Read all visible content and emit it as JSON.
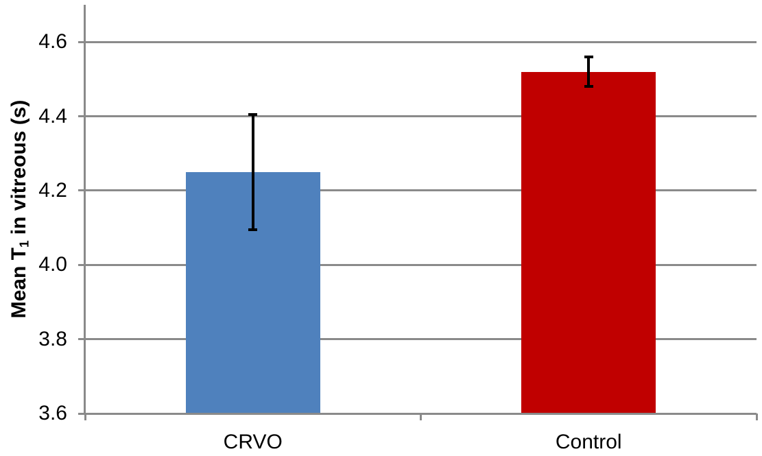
{
  "chart_data": {
    "type": "bar",
    "title": "",
    "xlabel": "",
    "ylabel": {
      "prefix": "Mean T",
      "sub": "1",
      "suffix": " in vitreous (s)",
      "full": "Mean T1 in vitreous (s)"
    },
    "categories": [
      "CRVO",
      "Control"
    ],
    "values": [
      4.25,
      4.52
    ],
    "errors_plus": [
      0.155,
      0.04
    ],
    "errors_minus": [
      0.155,
      0.04
    ],
    "error_ranges": [
      [
        4.1,
        4.41
      ],
      [
        4.48,
        4.56
      ]
    ],
    "bar_colors": [
      "#4F81BD",
      "#C00000"
    ],
    "ylim": [
      3.6,
      4.7
    ],
    "yticks": [
      3.6,
      3.8,
      4.0,
      4.2,
      4.4,
      4.6
    ],
    "ytick_labels": [
      "3.6",
      "3.8",
      "4.0",
      "4.2",
      "4.4",
      "4.6"
    ],
    "grid": "horizontal-major",
    "legend": "none",
    "background_color": "#FFFFFF",
    "axis_color": "#8A8A8A",
    "gridline_color": "#8A8A8A",
    "error_bar_color": "#000000",
    "text_color": "#000000"
  }
}
